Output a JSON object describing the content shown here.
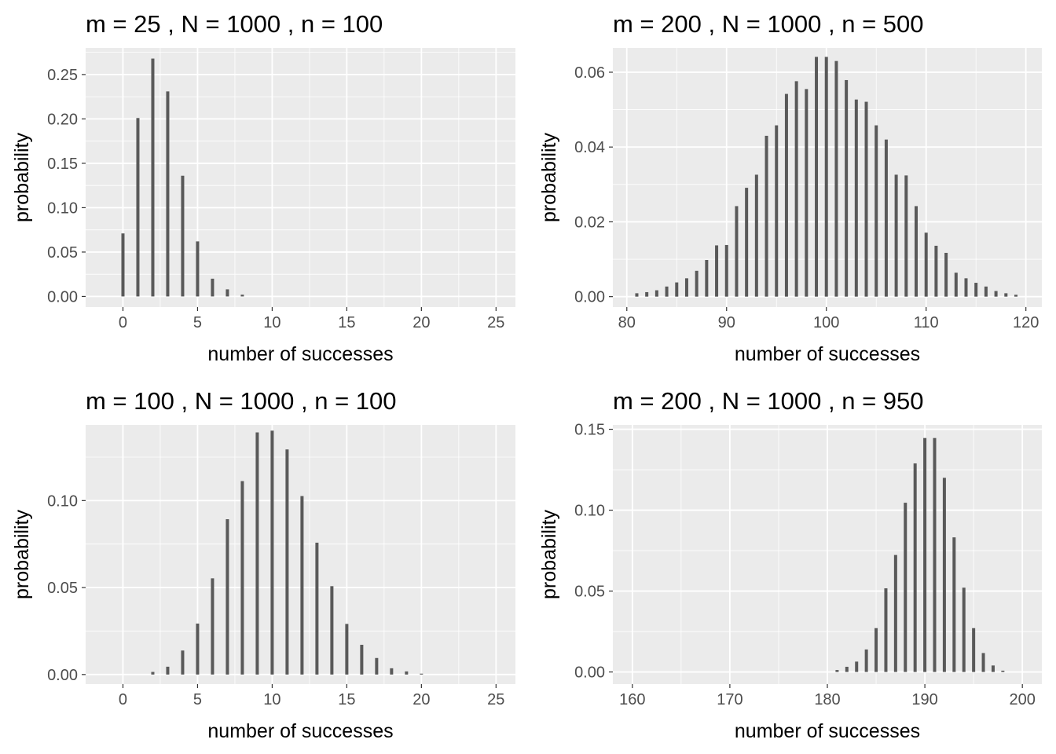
{
  "figure": {
    "background": "#ffffff",
    "panel_background": "#ebebeb",
    "grid_color": "#ffffff",
    "bar_color": "#595959"
  },
  "chart_data": [
    {
      "type": "bar",
      "title": "m =  25 , N =  1000 , n =  100",
      "xlabel": "number of successes",
      "ylabel": "probability",
      "xlim": [
        -2.5,
        26.3
      ],
      "ylim": [
        -0.012,
        0.28
      ],
      "xticks": [
        0,
        5,
        10,
        15,
        20,
        25
      ],
      "xtick_labels": [
        "0",
        "5",
        "10",
        "15",
        "20",
        "25"
      ],
      "yticks": [
        0,
        0.05,
        0.1,
        0.15,
        0.2,
        0.25
      ],
      "ytick_labels": [
        "0.00",
        "0.05",
        "0.10",
        "0.15",
        "0.20",
        "0.25"
      ],
      "grid": true,
      "x": [
        0,
        1,
        2,
        3,
        4,
        5,
        6,
        7,
        8
      ],
      "values": [
        0.071,
        0.201,
        0.268,
        0.231,
        0.136,
        0.062,
        0.02,
        0.008,
        0.002
      ]
    },
    {
      "type": "bar",
      "title": "m =  200 , N =  1000 , n =  500",
      "xlabel": "number of successes",
      "ylabel": "probability",
      "xlim": [
        78.6,
        121.6
      ],
      "ylim": [
        -0.0028,
        0.0665
      ],
      "xticks": [
        80,
        90,
        100,
        110,
        120
      ],
      "xtick_labels": [
        "80",
        "90",
        "100",
        "110",
        "120"
      ],
      "yticks": [
        0,
        0.02,
        0.04,
        0.06
      ],
      "ytick_labels": [
        "0.00",
        "0.02",
        "0.04",
        "0.06"
      ],
      "grid": true,
      "x": [
        81,
        82,
        83,
        84,
        85,
        86,
        87,
        88,
        89,
        90,
        91,
        92,
        93,
        94,
        95,
        96,
        97,
        98,
        99,
        100,
        101,
        102,
        103,
        104,
        105,
        106,
        107,
        108,
        109,
        110,
        111,
        112,
        113,
        114,
        115,
        116,
        117,
        118,
        119
      ],
      "values": [
        0.0009,
        0.0012,
        0.0017,
        0.0027,
        0.0038,
        0.0049,
        0.0069,
        0.0098,
        0.0137,
        0.0138,
        0.0242,
        0.0291,
        0.0326,
        0.043,
        0.0458,
        0.0542,
        0.0576,
        0.0555,
        0.0641,
        0.0641,
        0.063,
        0.0579,
        0.0527,
        0.0521,
        0.0458,
        0.042,
        0.0326,
        0.0324,
        0.0242,
        0.0171,
        0.0136,
        0.0117,
        0.0064,
        0.0049,
        0.0037,
        0.0027,
        0.0015,
        0.0009,
        0.0005
      ]
    },
    {
      "type": "bar",
      "title": "m =  100 , N =  1000 , n =  100",
      "xlabel": "number of successes",
      "ylabel": "probability",
      "xlim": [
        -2.5,
        26.3
      ],
      "ylim": [
        -0.0055,
        0.1435
      ],
      "xticks": [
        0,
        5,
        10,
        15,
        20,
        25
      ],
      "xtick_labels": [
        "0",
        "5",
        "10",
        "15",
        "20",
        "25"
      ],
      "yticks": [
        0,
        0.05,
        0.1
      ],
      "ytick_labels": [
        "0.00",
        "0.05",
        "0.10"
      ],
      "grid": true,
      "x": [
        2,
        3,
        4,
        5,
        6,
        7,
        8,
        9,
        10,
        11,
        12,
        13,
        14,
        15,
        16,
        17,
        18,
        19,
        20
      ],
      "values": [
        0.0015,
        0.0045,
        0.0138,
        0.0293,
        0.0553,
        0.0893,
        0.1112,
        0.1392,
        0.1402,
        0.1294,
        0.1026,
        0.0758,
        0.0508,
        0.0291,
        0.0171,
        0.0095,
        0.0036,
        0.0018,
        0.0005
      ]
    },
    {
      "type": "bar",
      "title": "m =  200 , N =  1000 , n =  950",
      "xlabel": "number of successes",
      "ylabel": "probability",
      "xlim": [
        158.0,
        202.0
      ],
      "ylim": [
        -0.0075,
        0.1527
      ],
      "xticks": [
        160,
        170,
        180,
        190,
        200
      ],
      "xtick_labels": [
        "160",
        "170",
        "180",
        "190",
        "200"
      ],
      "yticks": [
        0,
        0.05,
        0.1,
        0.15
      ],
      "ytick_labels": [
        "0.00",
        "0.05",
        "0.10",
        "0.15"
      ],
      "grid": true,
      "x": [
        181,
        182,
        183,
        184,
        185,
        186,
        187,
        188,
        189,
        190,
        191,
        192,
        193,
        194,
        195,
        196,
        197,
        198
      ],
      "values": [
        0.0012,
        0.0032,
        0.0064,
        0.0139,
        0.0271,
        0.0517,
        0.0723,
        0.1046,
        0.1289,
        0.1446,
        0.1446,
        0.12,
        0.0832,
        0.0521,
        0.0271,
        0.0117,
        0.004,
        0.0008
      ]
    }
  ]
}
